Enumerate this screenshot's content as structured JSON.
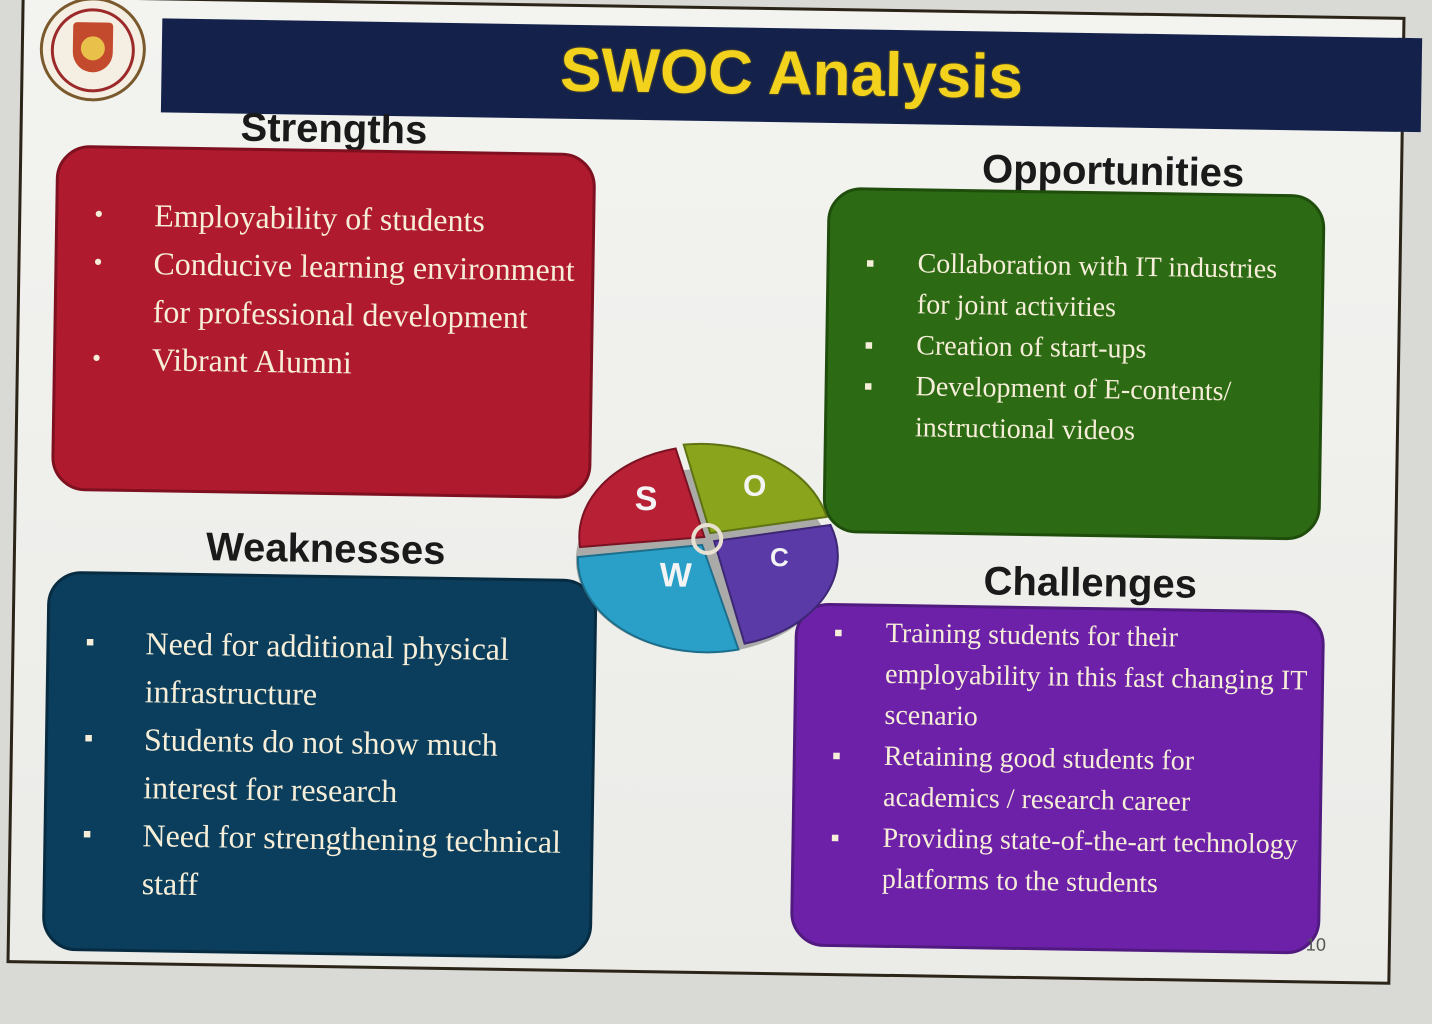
{
  "slide": {
    "title": "SWOC Analysis",
    "page_number": "10"
  },
  "strengths": {
    "heading": "Strengths",
    "items": [
      "Employability of students",
      "Conducive learning environment for professional development",
      "Vibrant Alumni"
    ],
    "color": "#b01a2e"
  },
  "opportunities": {
    "heading": "Opportunities",
    "items": [
      "Collaboration with IT industries for joint activities",
      "Creation of start-ups",
      "Development of E-contents/ instructional videos"
    ],
    "color": "#2c6a14"
  },
  "weaknesses": {
    "heading": "Weaknesses",
    "items": [
      "Need for additional physical infrastructure",
      "Students do not show much interest for research",
      "Need for strengthening technical staff"
    ],
    "color": "#0a3e5c"
  },
  "challenges": {
    "heading": "Challenges",
    "items": [
      "Training students for their employability in this fast changing IT scenario",
      "Retaining good students for academics / research career",
      "Providing state-of-the-art technology platforms to the students"
    ],
    "color": "#6d21a8"
  },
  "pie": {
    "letters": {
      "s": "S",
      "o": "O",
      "w": "W",
      "c": "C",
      "center": "C"
    },
    "colors": {
      "s": "#b82036",
      "o": "#8aa41c",
      "w": "#2aa0c8",
      "c": "#5a3aa6"
    }
  },
  "icons": {
    "logo": "university-logo",
    "bullet_round": "bullet-dot-icon",
    "bullet_square": "bullet-square-icon"
  }
}
